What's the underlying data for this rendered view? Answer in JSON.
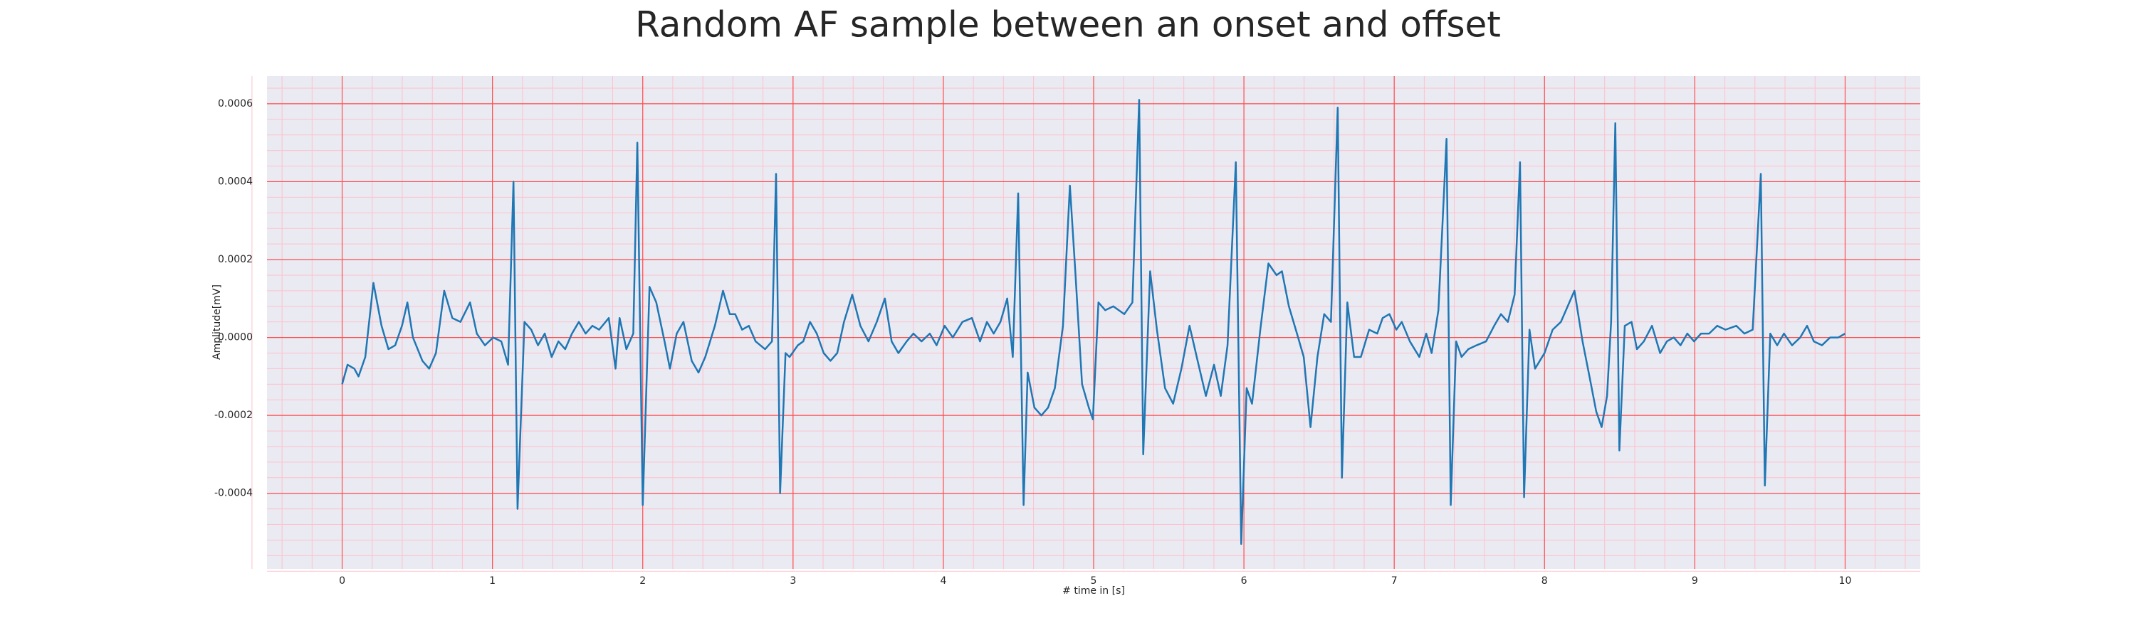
{
  "chart_data": {
    "type": "line",
    "title": "Random AF sample between an onset and offset",
    "xlabel": "# time in [s]",
    "ylabel": "Amplitude[mV]",
    "xlim": [
      -0.5,
      10.5
    ],
    "ylim": [
      -0.000594,
      0.000671
    ],
    "xticks": [
      0,
      1,
      2,
      3,
      4,
      5,
      6,
      7,
      8,
      9,
      10
    ],
    "yticks": [
      -0.0004,
      -0.0002,
      {
        "value": 0,
        "label": "0.0000"
      },
      0.0002,
      0.0004,
      0.0006
    ],
    "grid": true,
    "minor_grid": true,
    "color": "#1f77b4",
    "x": [
      0,
      0.036,
      0.081,
      0.109,
      0.154,
      0.208,
      0.262,
      0.308,
      0.353,
      0.398,
      0.434,
      0.471,
      0.534,
      0.579,
      0.624,
      0.679,
      0.733,
      0.787,
      0.851,
      0.896,
      0.95,
      1.005,
      1.059,
      1.104,
      1.14,
      1.167,
      1.213,
      1.258,
      1.303,
      1.348,
      1.394,
      1.439,
      1.484,
      1.529,
      1.575,
      1.62,
      1.665,
      1.71,
      1.774,
      1.819,
      1.846,
      1.891,
      1.937,
      1.964,
      2.0,
      2.045,
      2.09,
      2.145,
      2.181,
      2.226,
      2.271,
      2.326,
      2.371,
      2.416,
      2.48,
      2.534,
      2.579,
      2.615,
      2.661,
      2.706,
      2.751,
      2.814,
      2.86,
      2.887,
      2.914,
      2.95,
      2.977,
      3.032,
      3.068,
      3.113,
      3.158,
      3.204,
      3.249,
      3.294,
      3.339,
      3.394,
      3.448,
      3.502,
      3.557,
      3.611,
      3.656,
      3.701,
      3.756,
      3.801,
      3.855,
      3.91,
      3.955,
      4.009,
      4.063,
      4.127,
      4.19,
      4.244,
      4.29,
      4.335,
      4.38,
      4.425,
      4.462,
      4.498,
      4.534,
      4.561,
      4.606,
      4.652,
      4.697,
      4.742,
      4.796,
      4.842,
      4.878,
      4.923,
      4.968,
      4.995,
      5.032,
      5.077,
      5.131,
      5.204,
      5.258,
      5.303,
      5.33,
      5.376,
      5.421,
      5.475,
      5.529,
      5.584,
      5.638,
      5.692,
      5.747,
      5.801,
      5.846,
      5.891,
      5.946,
      5.982,
      6.018,
      6.054,
      6.109,
      6.163,
      6.217,
      6.253,
      6.299,
      6.353,
      6.398,
      6.443,
      6.489,
      6.534,
      6.579,
      6.624,
      6.652,
      6.688,
      6.733,
      6.778,
      6.833,
      6.887,
      6.923,
      6.968,
      7.014,
      7.05,
      7.104,
      7.167,
      7.213,
      7.249,
      7.294,
      7.348,
      7.376,
      7.412,
      7.448,
      7.493,
      7.548,
      7.611,
      7.665,
      7.71,
      7.756,
      7.801,
      7.837,
      7.864,
      7.9,
      7.937,
      8.0,
      8.054,
      8.109,
      8.154,
      8.199,
      8.253,
      8.299,
      8.344,
      8.38,
      8.416,
      8.443,
      8.471,
      8.498,
      8.534,
      8.579,
      8.615,
      8.661,
      8.715,
      8.769,
      8.814,
      8.86,
      8.905,
      8.95,
      8.995,
      9.041,
      9.095,
      9.149,
      9.204,
      9.276,
      9.33,
      9.385,
      9.439,
      9.466,
      9.502,
      9.548,
      9.593,
      9.647,
      9.701,
      9.747,
      9.792,
      9.846,
      9.9,
      9.955,
      10.0
    ],
    "values": [
      -0.00012,
      -7e-05,
      -8e-05,
      -0.0001,
      -5e-05,
      0.00014,
      3e-05,
      -3e-05,
      -2e-05,
      3e-05,
      9e-05,
      0,
      -6e-05,
      -8e-05,
      -4e-05,
      0.00012,
      5e-05,
      4e-05,
      9e-05,
      1e-05,
      -2e-05,
      0,
      -1e-05,
      -7e-05,
      0.0004,
      -0.00044,
      4e-05,
      2e-05,
      -2e-05,
      1e-05,
      -5e-05,
      -1e-05,
      -3e-05,
      1e-05,
      4e-05,
      1e-05,
      3e-05,
      2e-05,
      5e-05,
      -8e-05,
      5e-05,
      -3e-05,
      1e-05,
      0.0005,
      -0.00043,
      0.00013,
      9e-05,
      -1e-05,
      -8e-05,
      1e-05,
      4e-05,
      -6e-05,
      -9e-05,
      -5e-05,
      3e-05,
      0.00012,
      6e-05,
      6e-05,
      2e-05,
      3e-05,
      -1e-05,
      -3e-05,
      -1e-05,
      0.00042,
      -0.0004,
      -4e-05,
      -5e-05,
      -2e-05,
      -1e-05,
      4e-05,
      1e-05,
      -4e-05,
      -6e-05,
      -4e-05,
      4e-05,
      0.00011,
      3e-05,
      -1e-05,
      4e-05,
      0.0001,
      -1e-05,
      -4e-05,
      -1e-05,
      1e-05,
      -1e-05,
      1e-05,
      -2e-05,
      3e-05,
      0,
      4e-05,
      5e-05,
      -1e-05,
      4e-05,
      1e-05,
      4e-05,
      0.0001,
      -5e-05,
      0.00037,
      -0.00043,
      -9e-05,
      -0.00018,
      -0.0002,
      -0.00018,
      -0.00013,
      3e-05,
      0.00039,
      0.00017,
      -0.00012,
      -0.00018,
      -0.00021,
      9e-05,
      7e-05,
      8e-05,
      6e-05,
      9e-05,
      0.00061,
      -0.0003,
      0.00017,
      2e-05,
      -0.00013,
      -0.00017,
      -8e-05,
      3e-05,
      -6e-05,
      -0.00015,
      -7e-05,
      -0.00015,
      -2e-05,
      0.00045,
      -0.00053,
      -0.00013,
      -0.00017,
      2e-05,
      0.00019,
      0.00016,
      0.00017,
      8e-05,
      1e-05,
      -5e-05,
      -0.00023,
      -5e-05,
      6e-05,
      4e-05,
      0.00059,
      -0.00036,
      9e-05,
      -5e-05,
      -5e-05,
      2e-05,
      1e-05,
      5e-05,
      6e-05,
      2e-05,
      4e-05,
      -1e-05,
      -5e-05,
      1e-05,
      -4e-05,
      7e-05,
      0.00051,
      -0.00043,
      -1e-05,
      -5e-05,
      -3e-05,
      -2e-05,
      -1e-05,
      3e-05,
      6e-05,
      4e-05,
      0.00011,
      0.00045,
      -0.00041,
      2e-05,
      -8e-05,
      -4e-05,
      2e-05,
      4e-05,
      8e-05,
      0.00012,
      -1e-05,
      -0.0001,
      -0.00019,
      -0.00023,
      -0.00015,
      4e-05,
      0.00055,
      -0.00029,
      3e-05,
      4e-05,
      -3e-05,
      -1e-05,
      3e-05,
      -4e-05,
      -1e-05,
      0,
      -2e-05,
      1e-05,
      -1e-05,
      1e-05,
      1e-05,
      3e-05,
      2e-05,
      3e-05,
      1e-05,
      2e-05,
      0.00042,
      -0.00038,
      1e-05,
      -2e-05,
      1e-05,
      -2e-05,
      0,
      3e-05,
      -1e-05,
      -2e-05,
      0,
      0,
      1e-05
    ]
  }
}
